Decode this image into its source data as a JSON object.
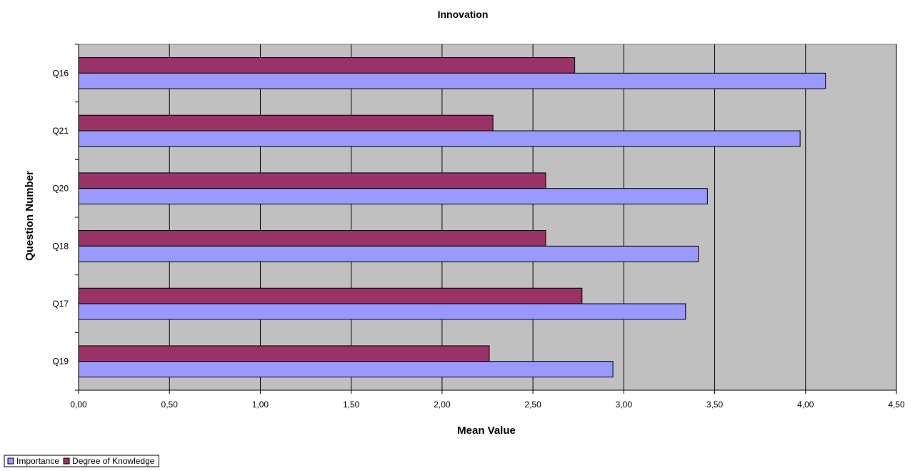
{
  "chart_data": {
    "type": "bar",
    "orientation": "horizontal",
    "title": "Innovation",
    "xlabel": "Mean Value",
    "ylabel": "Question Number",
    "categories": [
      "Q16",
      "Q21",
      "Q20",
      "Q18",
      "Q17",
      "Q19"
    ],
    "series": [
      {
        "name": "Importance",
        "values": [
          4.11,
          3.97,
          3.46,
          3.41,
          3.34,
          2.94
        ],
        "color": "#9999ff"
      },
      {
        "name": "Degree of Knowledge",
        "values": [
          2.73,
          2.28,
          2.57,
          2.57,
          2.77,
          2.26
        ],
        "color": "#993366"
      }
    ],
    "xlim": [
      0,
      4.5
    ],
    "xticks": [
      "0,00",
      "0,50",
      "1,00",
      "1,50",
      "2,00",
      "2,50",
      "3,00",
      "3,50",
      "4,00",
      "4,50"
    ],
    "grid": true,
    "plot_background": "#c0c0c0",
    "legend_position": "bottom-left"
  }
}
